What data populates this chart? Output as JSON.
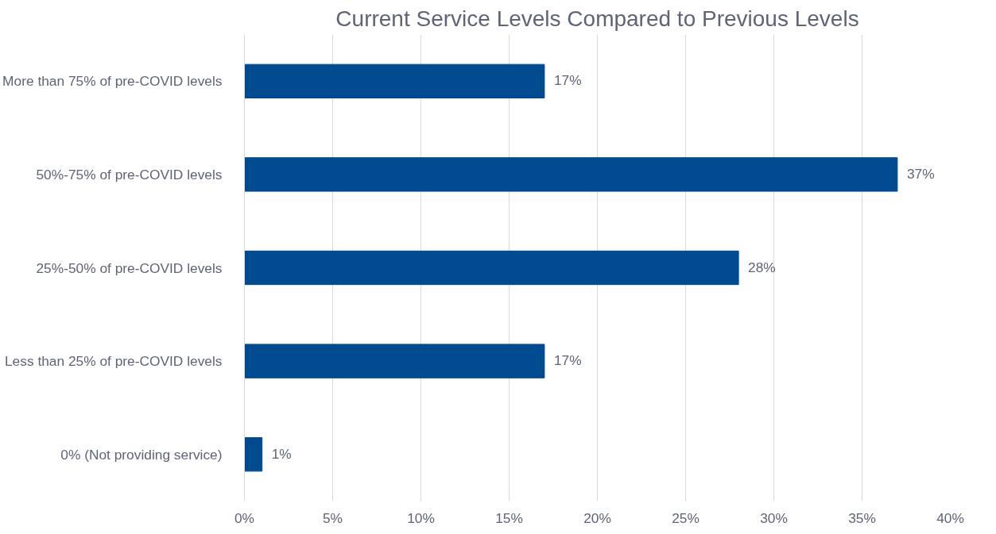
{
  "chart_data": {
    "type": "bar",
    "orientation": "horizontal",
    "title": "Current Service Levels Compared to Previous Levels",
    "categories": [
      "More than 75% of pre-COVID levels",
      "50%-75% of pre-COVID levels",
      "25%-50% of pre-COVID levels",
      "Less than 25% of pre-COVID levels",
      "0% (Not providing service)"
    ],
    "series": [
      {
        "color": "#004a8f",
        "values": [
          17,
          37,
          28,
          17,
          1
        ]
      }
    ],
    "value_labels": [
      "17%",
      "37%",
      "28%",
      "17%",
      "1%"
    ],
    "xlim": [
      0,
      40
    ],
    "xticks": [
      {
        "value": 0,
        "label": "0%"
      },
      {
        "value": 5,
        "label": "5%"
      },
      {
        "value": 10,
        "label": "10%"
      },
      {
        "value": 15,
        "label": "15%"
      },
      {
        "value": 20,
        "label": "20%"
      },
      {
        "value": 25,
        "label": "25%"
      },
      {
        "value": 30,
        "label": "30%"
      },
      {
        "value": 35,
        "label": "35%"
      },
      {
        "value": 40,
        "label": "40%"
      }
    ],
    "grid": "x"
  }
}
